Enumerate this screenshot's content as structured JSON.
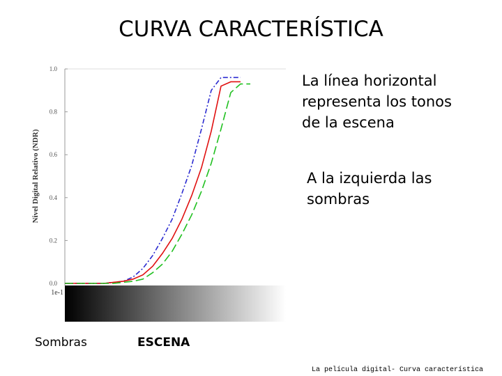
{
  "title": "CURVA CARACTERÍSTICA",
  "notes": [
    [
      "La línea horizontal",
      "representa los tonos",
      "de la escena"
    ],
    [
      "A la izquierda las",
      "sombras"
    ]
  ],
  "scale_labels": [
    "Sombras",
    "ESCENA"
  ],
  "footer": "La película digital- Curva característica",
  "chart_data": {
    "type": "line",
    "ylabel": "Nivel Digital Relativo (NDR)",
    "categories": [
      "1e-1",
      null,
      null,
      null,
      null,
      null,
      null,
      null,
      null,
      null,
      null,
      null,
      null,
      null,
      null,
      null,
      null,
      null,
      null,
      null
    ],
    "series": [
      {
        "color": "#2a2ad0",
        "dash": "dashdot",
        "values": [
          0,
          0,
          0,
          0,
          0,
          0.005,
          0.01,
          0.03,
          0.07,
          0.13,
          0.21,
          0.3,
          0.42,
          0.55,
          0.72,
          0.9,
          0.96,
          0.96,
          0.96,
          null
        ]
      },
      {
        "color": "#e01010",
        "dash": "solid",
        "values": [
          0,
          0,
          0,
          0,
          0,
          0.005,
          0.01,
          0.02,
          0.04,
          0.08,
          0.14,
          0.21,
          0.3,
          0.41,
          0.54,
          0.71,
          0.92,
          0.94,
          0.94,
          null
        ]
      },
      {
        "color": "#20c020",
        "dash": "dashed",
        "values": [
          0,
          0,
          0,
          0,
          0,
          0,
          0.005,
          0.01,
          0.02,
          0.05,
          0.09,
          0.15,
          0.23,
          0.32,
          0.43,
          0.56,
          0.72,
          0.89,
          0.93,
          0.93
        ]
      }
    ],
    "ylim": [
      0,
      1
    ],
    "yticks": [
      {
        "value": 0,
        "label": "0.0"
      },
      0.2,
      0.4,
      0.6,
      0.8,
      {
        "value": 1,
        "label": "1.0"
      }
    ]
  }
}
